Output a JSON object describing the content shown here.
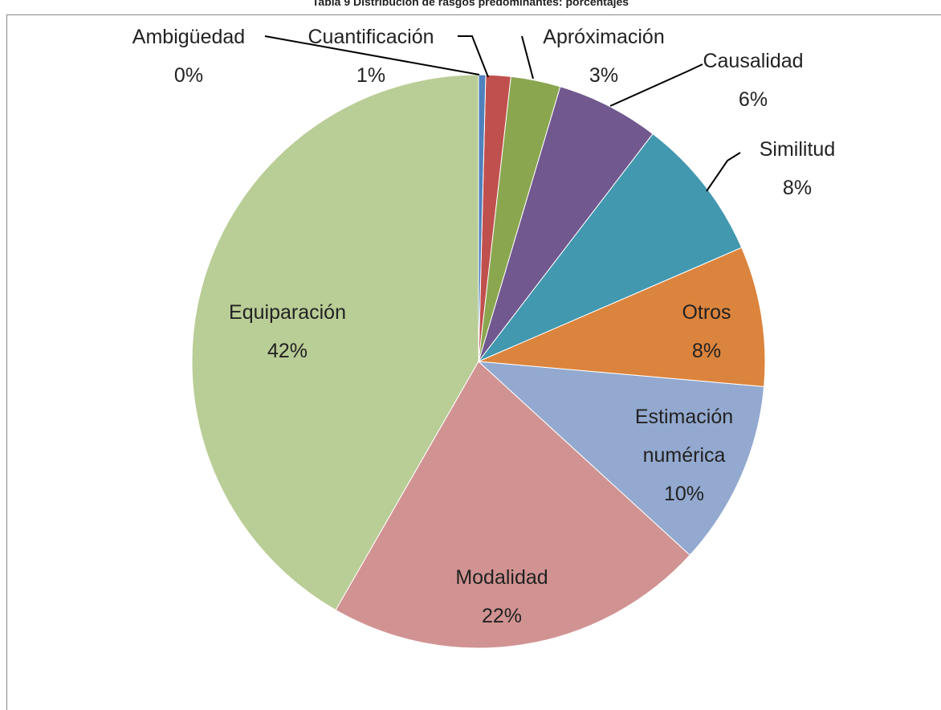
{
  "chart_data": {
    "type": "pie",
    "title": "Tabla 9 Distribución de rasgos predominantes: porcentajes",
    "categories": [
      "Ambigüedad",
      "Cuantificación",
      "Apróximación",
      "Causalidad",
      "Similitud",
      "Otros",
      "Estimación numérica",
      "Modalidad",
      "Equiparación"
    ],
    "values": [
      0.4,
      1.4,
      2.8,
      5.8,
      8.1,
      7.9,
      10.4,
      21.5,
      41.7
    ],
    "value_labels": [
      "0%",
      "1%",
      "3%",
      "6%",
      "8%",
      "8%",
      "10%",
      "22%",
      "42%"
    ],
    "colors": [
      "#4f81bd",
      "#c0504d",
      "#8aa64f",
      "#71588f",
      "#4198af",
      "#db843d",
      "#93a9cf",
      "#d19392",
      "#b9cd96"
    ]
  }
}
